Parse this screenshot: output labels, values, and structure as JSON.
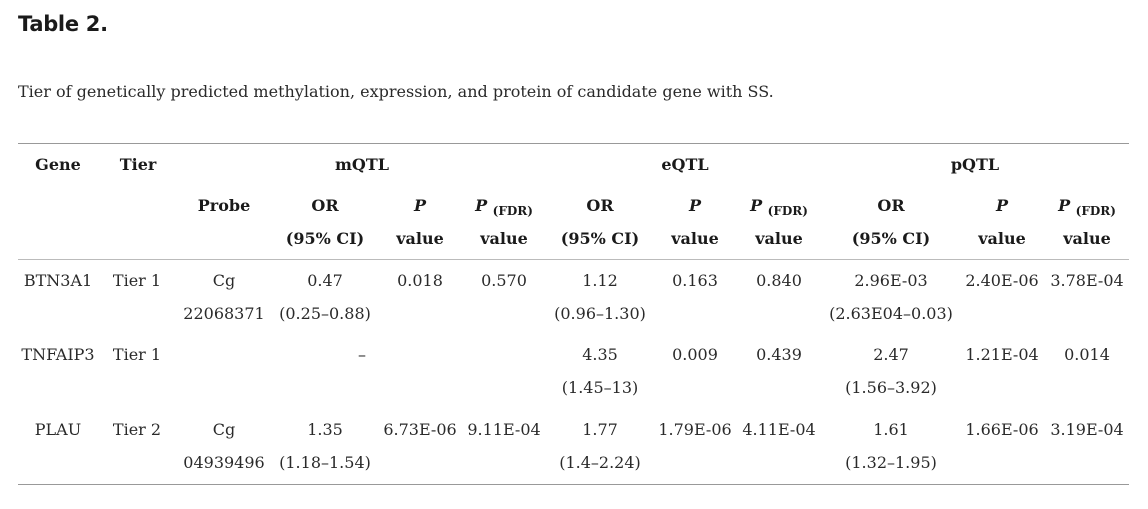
{
  "title": "Table 2.",
  "caption": "Tier of genetically predicted methylation, expression, and protein of candidate gene with SS.",
  "headers": {
    "gene": "Gene",
    "tier": "Tier",
    "mqtl": "mQTL",
    "eqtl": "eQTL",
    "pqtl": "pQTL",
    "probe": "Probe",
    "or": "OR",
    "ci": "(95% CI)",
    "p": "P",
    "fdr": "(FDR)",
    "value": "value"
  },
  "rows": [
    {
      "gene": "BTN3A1",
      "tier": "Tier 1",
      "probe_1": "Cg",
      "probe_2": "22068371",
      "m_or": "0.47",
      "m_ci": "(0.25–0.88)",
      "m_p": "0.018",
      "m_fdr": "0.570",
      "e_or": "1.12",
      "e_ci": "(0.96–1.30)",
      "e_p": "0.163",
      "e_fdr": "0.840",
      "p_or": "2.96E-03",
      "p_ci": "(2.63E04–0.03)",
      "p_p": "2.40E-06",
      "p_fdr": "3.78E-04"
    },
    {
      "gene": "TNFAIP3",
      "tier": "Tier 1",
      "m_dash": "–",
      "e_or": "4.35",
      "e_ci": "(1.45–13)",
      "e_p": "0.009",
      "e_fdr": "0.439",
      "p_or": "2.47",
      "p_ci": "(1.56–3.92)",
      "p_p": "1.21E-04",
      "p_fdr": "0.014"
    },
    {
      "gene": "PLAU",
      "tier": "Tier 2",
      "probe_1": "Cg",
      "probe_2": "04939496",
      "m_or": "1.35",
      "m_ci": "(1.18–1.54)",
      "m_p": "6.73E-06",
      "m_fdr": "9.11E-04",
      "e_or": "1.77",
      "e_ci": "(1.4–2.24)",
      "e_p": "1.79E-06",
      "e_fdr": "4.11E-04",
      "p_or": "1.61",
      "p_ci": "(1.32–1.95)",
      "p_p": "1.66E-06",
      "p_fdr": "3.19E-04"
    }
  ]
}
